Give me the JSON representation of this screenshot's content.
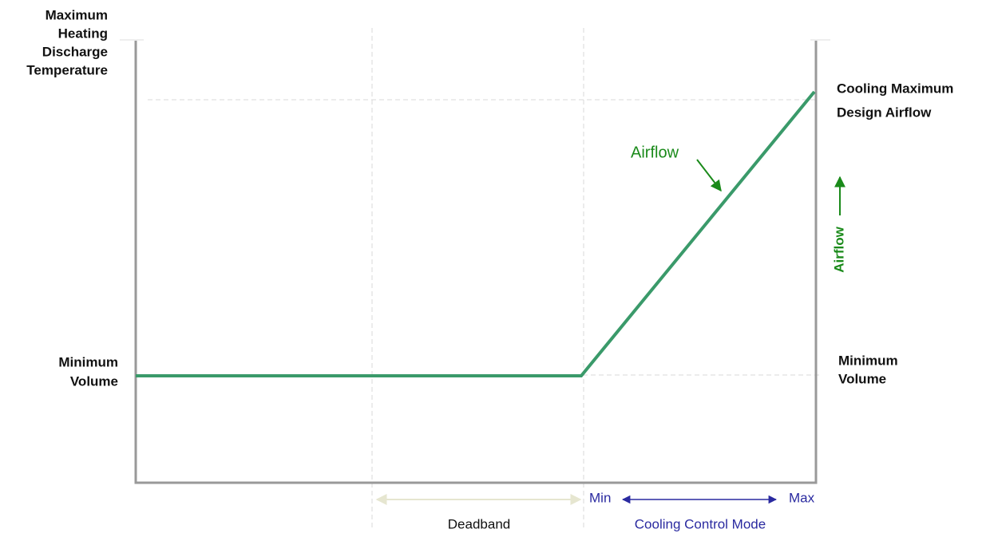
{
  "left_labels": {
    "top": [
      "Maximum",
      "Heating",
      "Discharge",
      "Temperature"
    ],
    "bottom": [
      "Minimum",
      "Volume"
    ]
  },
  "right_labels": {
    "top": [
      "Cooling Maximum",
      "Design Airflow"
    ],
    "bottom": [
      "Minimum",
      "Volume"
    ]
  },
  "curve_label": "Airflow",
  "axis_label": "Airflow",
  "bottom_labels": {
    "min": "Min",
    "max": "Max",
    "deadband": "Deadband",
    "mode": "Cooling Control Mode"
  }
}
